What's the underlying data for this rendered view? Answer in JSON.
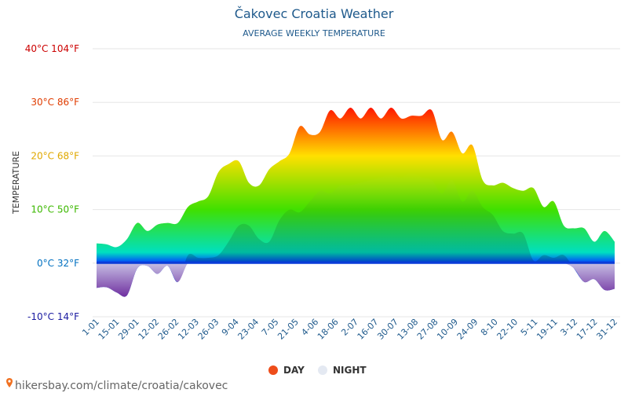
{
  "chart_data": {
    "type": "area",
    "title": "Čakovec Croatia Weather",
    "subtitle": "AVERAGE WEEKLY TEMPERATURE",
    "ylabel": "TEMPERATURE",
    "ylim": [
      -10,
      40
    ],
    "yticks": [
      {
        "value": 40,
        "label": "40°C 104°F",
        "color": "#cc0000"
      },
      {
        "value": 30,
        "label": "30°C 86°F",
        "color": "#e03c00"
      },
      {
        "value": 20,
        "label": "20°C 68°F",
        "color": "#e0a800"
      },
      {
        "value": 10,
        "label": "10°C 50°F",
        "color": "#3cb800"
      },
      {
        "value": 0,
        "label": "0°C 32°F",
        "color": "#0070c0"
      },
      {
        "value": -10,
        "label": "-10°C 14°F",
        "color": "#1a1aa0"
      }
    ],
    "x_labels": [
      "1-01",
      "15-01",
      "29-01",
      "12-02",
      "26-02",
      "12-03",
      "26-03",
      "9-04",
      "23-04",
      "7-05",
      "21-05",
      "4-06",
      "18-06",
      "2-07",
      "16-07",
      "30-07",
      "13-08",
      "27-08",
      "10-09",
      "24-09",
      "8-10",
      "22-10",
      "5-11",
      "19-11",
      "3-12",
      "17-12",
      "31-12"
    ],
    "series": [
      {
        "name": "DAY",
        "color": "#ee4d1a",
        "values": [
          3.7,
          3.5,
          3,
          4.5,
          7.5,
          6,
          7.2,
          7.5,
          7.5,
          10.5,
          11.5,
          12.5,
          17,
          18.5,
          19,
          15,
          14.5,
          17.5,
          19,
          20.5,
          25.5,
          24,
          24.5,
          28.5,
          27,
          29,
          27,
          29,
          27,
          29,
          27,
          27.5,
          27.5,
          28.5,
          23,
          24.5,
          20.5,
          22,
          15.5,
          14.5,
          15,
          14,
          13.5,
          14,
          10.5,
          11.5,
          7,
          6.5,
          6.5,
          4,
          6,
          4
        ]
      },
      {
        "name": "NIGHT",
        "color": "#e4e9f2",
        "values": [
          -4.6,
          -4.5,
          -5.5,
          -6,
          -1,
          -0.5,
          -2,
          -0.5,
          -3.5,
          1.5,
          1,
          1,
          1.5,
          4,
          7,
          7,
          4.5,
          4,
          8,
          10,
          9.5,
          11.5,
          13.5,
          13,
          14.5,
          14.5,
          15,
          15.5,
          16,
          16.5,
          16,
          17,
          16,
          15.5,
          13,
          15.5,
          11.5,
          13.5,
          10.5,
          9,
          6,
          5.5,
          5.5,
          0.5,
          1.5,
          1,
          1.5,
          -1,
          -3.5,
          -3,
          -5,
          -4.8
        ]
      }
    ],
    "legend": {
      "placement": "bottom-center"
    },
    "grid": true,
    "colors": {
      "hot": "#ff0000",
      "warm": "#ffe000",
      "mild": "#40e000",
      "cool": "#00e0c0",
      "cold": "#0040ff",
      "freezing": "#7030a0"
    }
  },
  "source": {
    "url": "hikersbay.com/climate/croatia/cakovec",
    "pin_icon": "map-pin-icon"
  }
}
